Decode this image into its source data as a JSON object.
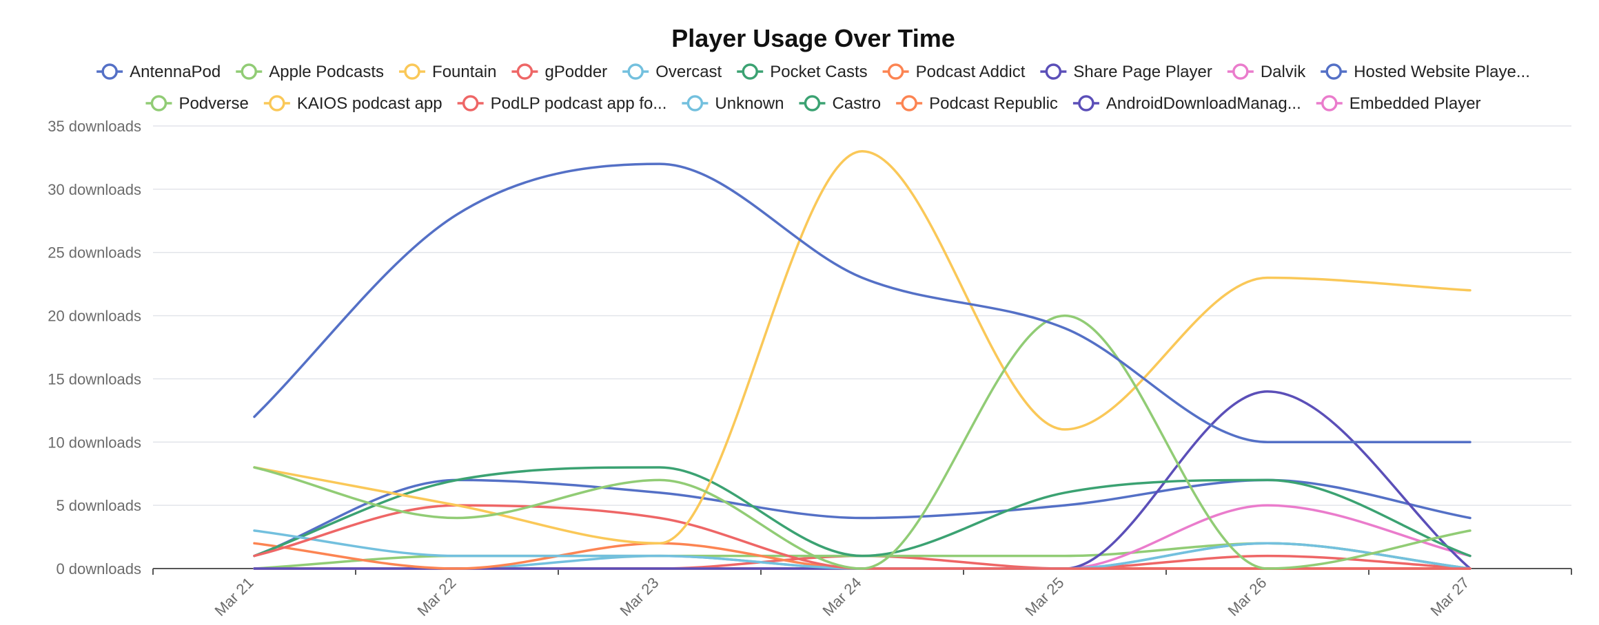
{
  "chart_data": {
    "type": "line",
    "title": "Player Usage Over Time",
    "xlabel": "",
    "ylabel": "",
    "categories": [
      "Mar 21",
      "Mar 22",
      "Mar 23",
      "Mar 24",
      "Mar 25",
      "Mar 26",
      "Mar 27"
    ],
    "ylim": [
      0,
      35
    ],
    "yticks": [
      {
        "value": 0,
        "label": "0 downloads"
      },
      {
        "value": 5,
        "label": "5 downloads"
      },
      {
        "value": 10,
        "label": "10 downloads"
      },
      {
        "value": 15,
        "label": "15 downloads"
      },
      {
        "value": 20,
        "label": "20 downloads"
      },
      {
        "value": 25,
        "label": "25 downloads"
      },
      {
        "value": 30,
        "label": "30 downloads"
      },
      {
        "value": 35,
        "label": "35 downloads"
      }
    ],
    "grid": true,
    "legend_position": "top",
    "series": [
      {
        "name": "AntennaPod",
        "legend_label": "AntennaPod",
        "color": "#5470c6",
        "values": [
          12,
          28,
          32,
          23,
          19,
          10,
          10
        ]
      },
      {
        "name": "Apple Podcasts",
        "legend_label": "Apple Podcasts",
        "color": "#91cc75",
        "values": [
          8,
          4,
          7,
          0,
          20,
          0,
          3
        ]
      },
      {
        "name": "Fountain",
        "legend_label": "Fountain",
        "color": "#fac858",
        "values": [
          8,
          5,
          2,
          33,
          11,
          23,
          22
        ]
      },
      {
        "name": "gPodder",
        "legend_label": "gPodder",
        "color": "#ee6666",
        "values": [
          1,
          5,
          4,
          0,
          0,
          0,
          0
        ]
      },
      {
        "name": "Overcast",
        "legend_label": "Overcast",
        "color": "#73c0de",
        "values": [
          3,
          1,
          1,
          0,
          0,
          2,
          0
        ]
      },
      {
        "name": "Pocket Casts",
        "legend_label": "Pocket Casts",
        "color": "#3ba272",
        "values": [
          1,
          7,
          8,
          1,
          6,
          7,
          1
        ]
      },
      {
        "name": "Podcast Addict",
        "legend_label": "Podcast Addict",
        "color": "#fc8452",
        "values": [
          2,
          0,
          2,
          0,
          0,
          0,
          0
        ]
      },
      {
        "name": "Share Page Player",
        "legend_label": "Share Page Player",
        "color": "#5b4fb8",
        "values": [
          0,
          0,
          0,
          0,
          0,
          14,
          0
        ]
      },
      {
        "name": "Dalvik",
        "legend_label": "Dalvik",
        "color": "#ea7ccc",
        "values": [
          0,
          0,
          0,
          0,
          0,
          5,
          1
        ]
      },
      {
        "name": "Hosted Website Player",
        "legend_label": "Hosted Website Playe...",
        "color": "#5470c6",
        "values": [
          1,
          7,
          6,
          4,
          5,
          7,
          4
        ]
      },
      {
        "name": "Podverse",
        "legend_label": "Podverse",
        "color": "#91cc75",
        "values": [
          0,
          1,
          1,
          1,
          1,
          2,
          0
        ]
      },
      {
        "name": "KAIOS podcast app",
        "legend_label": "KAIOS podcast app",
        "color": "#fac858",
        "values": [
          0,
          0,
          0,
          0,
          0,
          0,
          0
        ]
      },
      {
        "name": "PodLP podcast app",
        "legend_label": "PodLP podcast app fo...",
        "color": "#ee6666",
        "values": [
          0,
          0,
          0,
          1,
          0,
          1,
          0
        ]
      },
      {
        "name": "Unknown",
        "legend_label": "Unknown",
        "color": "#73c0de",
        "values": [
          0,
          0,
          1,
          0,
          0,
          2,
          0
        ]
      },
      {
        "name": "Castro",
        "legend_label": "Castro",
        "color": "#3ba272",
        "values": [
          0,
          0,
          0,
          0,
          0,
          0,
          0
        ]
      },
      {
        "name": "Podcast Republic",
        "legend_label": "Podcast Republic",
        "color": "#fc8452",
        "values": [
          0,
          0,
          0,
          0,
          0,
          0,
          0
        ]
      },
      {
        "name": "AndroidDownloadManager",
        "legend_label": "AndroidDownloadManag...",
        "color": "#5b4fb8",
        "values": [
          0,
          0,
          0,
          0,
          0,
          0,
          0
        ]
      },
      {
        "name": "Embedded Player",
        "legend_label": "Embedded Player",
        "color": "#ea7ccc",
        "values": [
          0,
          0,
          0,
          0,
          0,
          0,
          0
        ]
      }
    ]
  }
}
